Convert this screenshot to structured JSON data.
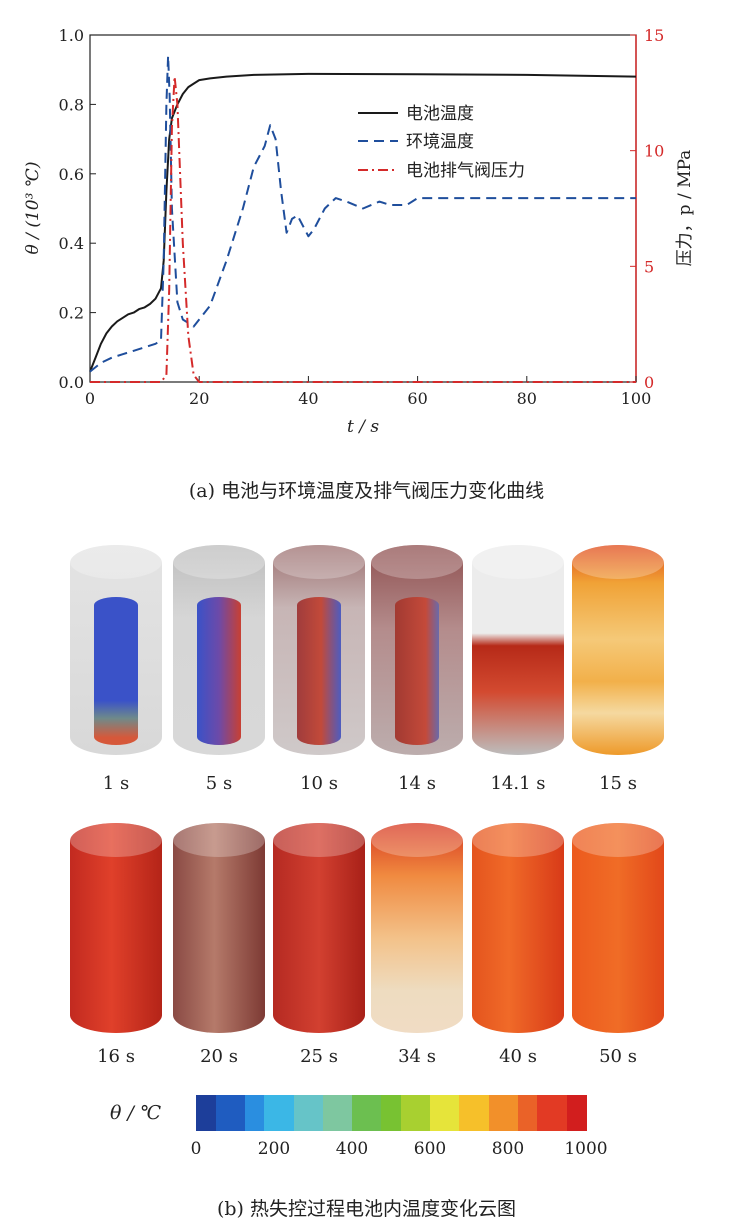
{
  "chart_data": {
    "type": "line",
    "xlabel": "t / s",
    "ylabel_left": "θ / (10³ ℃)",
    "ylabel_right": "压力，p / MPa",
    "xlim": [
      0,
      100
    ],
    "ylim_left": [
      0,
      1.0
    ],
    "ylim_right": [
      0,
      15
    ],
    "x_ticks": [
      "0",
      "20",
      "40",
      "60",
      "80",
      "100"
    ],
    "y_left_ticks": [
      "0.0",
      "0.2",
      "0.4",
      "0.6",
      "0.8",
      "1.0"
    ],
    "y_right_ticks": [
      "0",
      "5",
      "10",
      "15"
    ],
    "legend": "top-right",
    "series": [
      {
        "name": "电池温度",
        "axis": "left",
        "color": "#1a1a1a",
        "style": "solid",
        "x": [
          0,
          1,
          2,
          3,
          4,
          5,
          6,
          7,
          8,
          9,
          10,
          11,
          12,
          13,
          13.5,
          14,
          14.5,
          15,
          16,
          17,
          18,
          19,
          20,
          22,
          25,
          30,
          40,
          60,
          80,
          100
        ],
        "y": [
          0.03,
          0.07,
          0.11,
          0.14,
          0.16,
          0.175,
          0.185,
          0.195,
          0.2,
          0.21,
          0.215,
          0.225,
          0.24,
          0.27,
          0.35,
          0.55,
          0.7,
          0.76,
          0.8,
          0.83,
          0.85,
          0.86,
          0.87,
          0.875,
          0.88,
          0.885,
          0.888,
          0.887,
          0.885,
          0.88
        ]
      },
      {
        "name": "环境温度",
        "axis": "left",
        "color": "#1f4e9c",
        "style": "dashed",
        "x": [
          0,
          2,
          4,
          6,
          8,
          10,
          12,
          13,
          13.5,
          14,
          14.3,
          14.6,
          15,
          16,
          17,
          18,
          19,
          20,
          22,
          25,
          28,
          30,
          32,
          33,
          34,
          35,
          36,
          37,
          38,
          39,
          40,
          41,
          43,
          45,
          47,
          50,
          53,
          55,
          58,
          60,
          70,
          80,
          90,
          100
        ],
        "y": [
          0.03,
          0.055,
          0.07,
          0.08,
          0.09,
          0.1,
          0.11,
          0.12,
          0.35,
          0.8,
          0.94,
          0.82,
          0.5,
          0.23,
          0.18,
          0.17,
          0.16,
          0.18,
          0.22,
          0.35,
          0.5,
          0.62,
          0.68,
          0.74,
          0.7,
          0.55,
          0.43,
          0.47,
          0.48,
          0.45,
          0.42,
          0.44,
          0.5,
          0.53,
          0.52,
          0.5,
          0.52,
          0.51,
          0.51,
          0.53,
          0.53,
          0.53,
          0.53,
          0.53
        ]
      },
      {
        "name": "电池排气阀压力",
        "axis": "right",
        "color": "#d42a2a",
        "style": "dashdot",
        "x": [
          0,
          10,
          13,
          14,
          14.5,
          15,
          15.5,
          16,
          16.5,
          17,
          18,
          19,
          20,
          30,
          60,
          100
        ],
        "y": [
          0,
          0,
          0,
          0.3,
          4,
          11,
          13.2,
          12,
          9,
          6,
          2,
          0.3,
          0,
          0,
          0,
          0
        ]
      }
    ]
  },
  "caption_a": "(a)  电池与环境温度及排气阀压力变化曲线",
  "caption_b": "(b)  热失控过程电池内温度变化云图",
  "contour": {
    "row1_labels": [
      "1 s",
      "5 s",
      "10 s",
      "14 s",
      "14.1 s",
      "15 s"
    ],
    "row2_labels": [
      "16 s",
      "20 s",
      "25 s",
      "34 s",
      "40 s",
      "50 s"
    ],
    "colorbar_title": "θ / ℃",
    "colorbar_ticks": [
      "0",
      "200",
      "400",
      "600",
      "800",
      "1000"
    ],
    "colorbar_range": [
      0,
      1000
    ]
  }
}
